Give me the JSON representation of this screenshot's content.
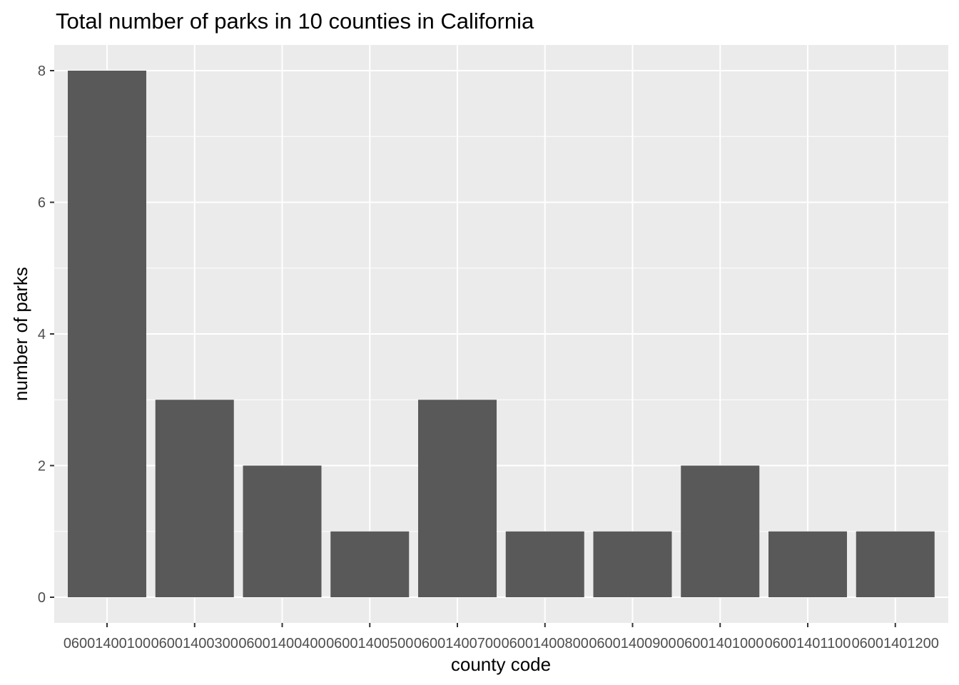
{
  "chart_data": {
    "type": "bar",
    "title": "Total number of parks in 10 counties in California",
    "xlabel": "county code",
    "ylabel": "number of parks",
    "categories": [
      "06001400100",
      "06001400300",
      "06001400400",
      "06001400500",
      "06001400700",
      "06001400800",
      "06001400900",
      "06001401000",
      "06001401100",
      "06001401200"
    ],
    "values": [
      8,
      3,
      2,
      1,
      3,
      1,
      1,
      2,
      1,
      1
    ],
    "ylim": [
      0,
      8
    ],
    "yticks": [
      0,
      2,
      4,
      6,
      8
    ],
    "grid": true,
    "legend": "none",
    "colors": {
      "bar": "#595959",
      "panel": "#ebebeb",
      "grid_major": "#ffffff",
      "tick_text": "#4d4d4d"
    }
  }
}
